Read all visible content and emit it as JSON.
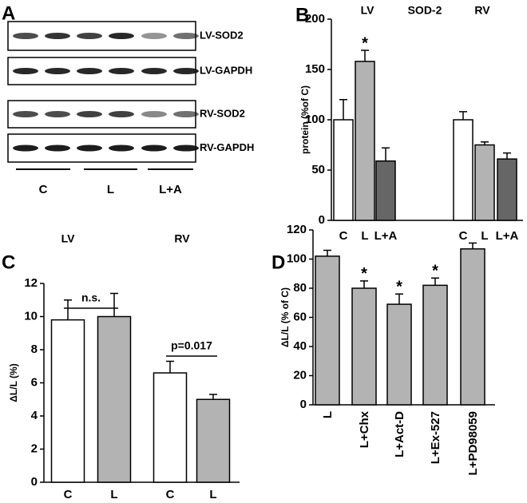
{
  "panel_labels": [
    "A",
    "B",
    "C",
    "D"
  ],
  "blot": {
    "rows": [
      "LV-SOD2",
      "LV-GAPDH",
      "RV-SOD2",
      "RV-GAPDH"
    ],
    "lanes": [
      "C",
      "L",
      "L+A"
    ]
  },
  "chart_data": [
    {
      "type": "bar",
      "title": "SOD-2",
      "group_labels": [
        "LV",
        "RV"
      ],
      "ylabel": "protein (%of C)",
      "categories": [
        "C",
        "L",
        "L+A",
        "C",
        "L",
        "L+A"
      ],
      "values": [
        100,
        158,
        59,
        100,
        75,
        61
      ],
      "errors": [
        20,
        11,
        13,
        8,
        3,
        6
      ],
      "colors": [
        "#ffffff",
        "#b3b3b3",
        "#666666",
        "#ffffff",
        "#b3b3b3",
        "#666666"
      ],
      "marks": [
        null,
        "*",
        null,
        null,
        null,
        null
      ],
      "ylim": [
        0,
        200
      ],
      "yticks": [
        0,
        50,
        100,
        150,
        200
      ]
    },
    {
      "type": "bar",
      "group_labels": [
        "LV",
        "RV"
      ],
      "ylabel": "ΔL/L (%)",
      "categories": [
        "C",
        "L",
        "C",
        "L"
      ],
      "values": [
        9.8,
        10.0,
        6.6,
        5.0
      ],
      "errors": [
        1.2,
        1.4,
        0.7,
        0.3
      ],
      "colors": [
        "#ffffff",
        "#b3b3b3",
        "#ffffff",
        "#b3b3b3"
      ],
      "comparisons": [
        "n.s.",
        "p=0.017"
      ],
      "ylim": [
        0,
        12
      ],
      "yticks": [
        0,
        2,
        4,
        6,
        8,
        10,
        12
      ]
    },
    {
      "type": "bar",
      "ylabel": "ΔL/L (% of C)",
      "categories": [
        "L",
        "L+Chx",
        "L+Act-D",
        "L+Ex-527",
        "L+PD98059"
      ],
      "values": [
        102,
        80,
        69,
        82,
        107
      ],
      "errors": [
        4,
        5,
        7,
        5,
        4
      ],
      "colors": [
        "#b3b3b3",
        "#b3b3b3",
        "#b3b3b3",
        "#b3b3b3",
        "#b3b3b3"
      ],
      "marks": [
        null,
        "*",
        "*",
        "*",
        null
      ],
      "ylim": [
        0,
        120
      ],
      "yticks": [
        0,
        20,
        40,
        60,
        80,
        100,
        120
      ]
    }
  ]
}
